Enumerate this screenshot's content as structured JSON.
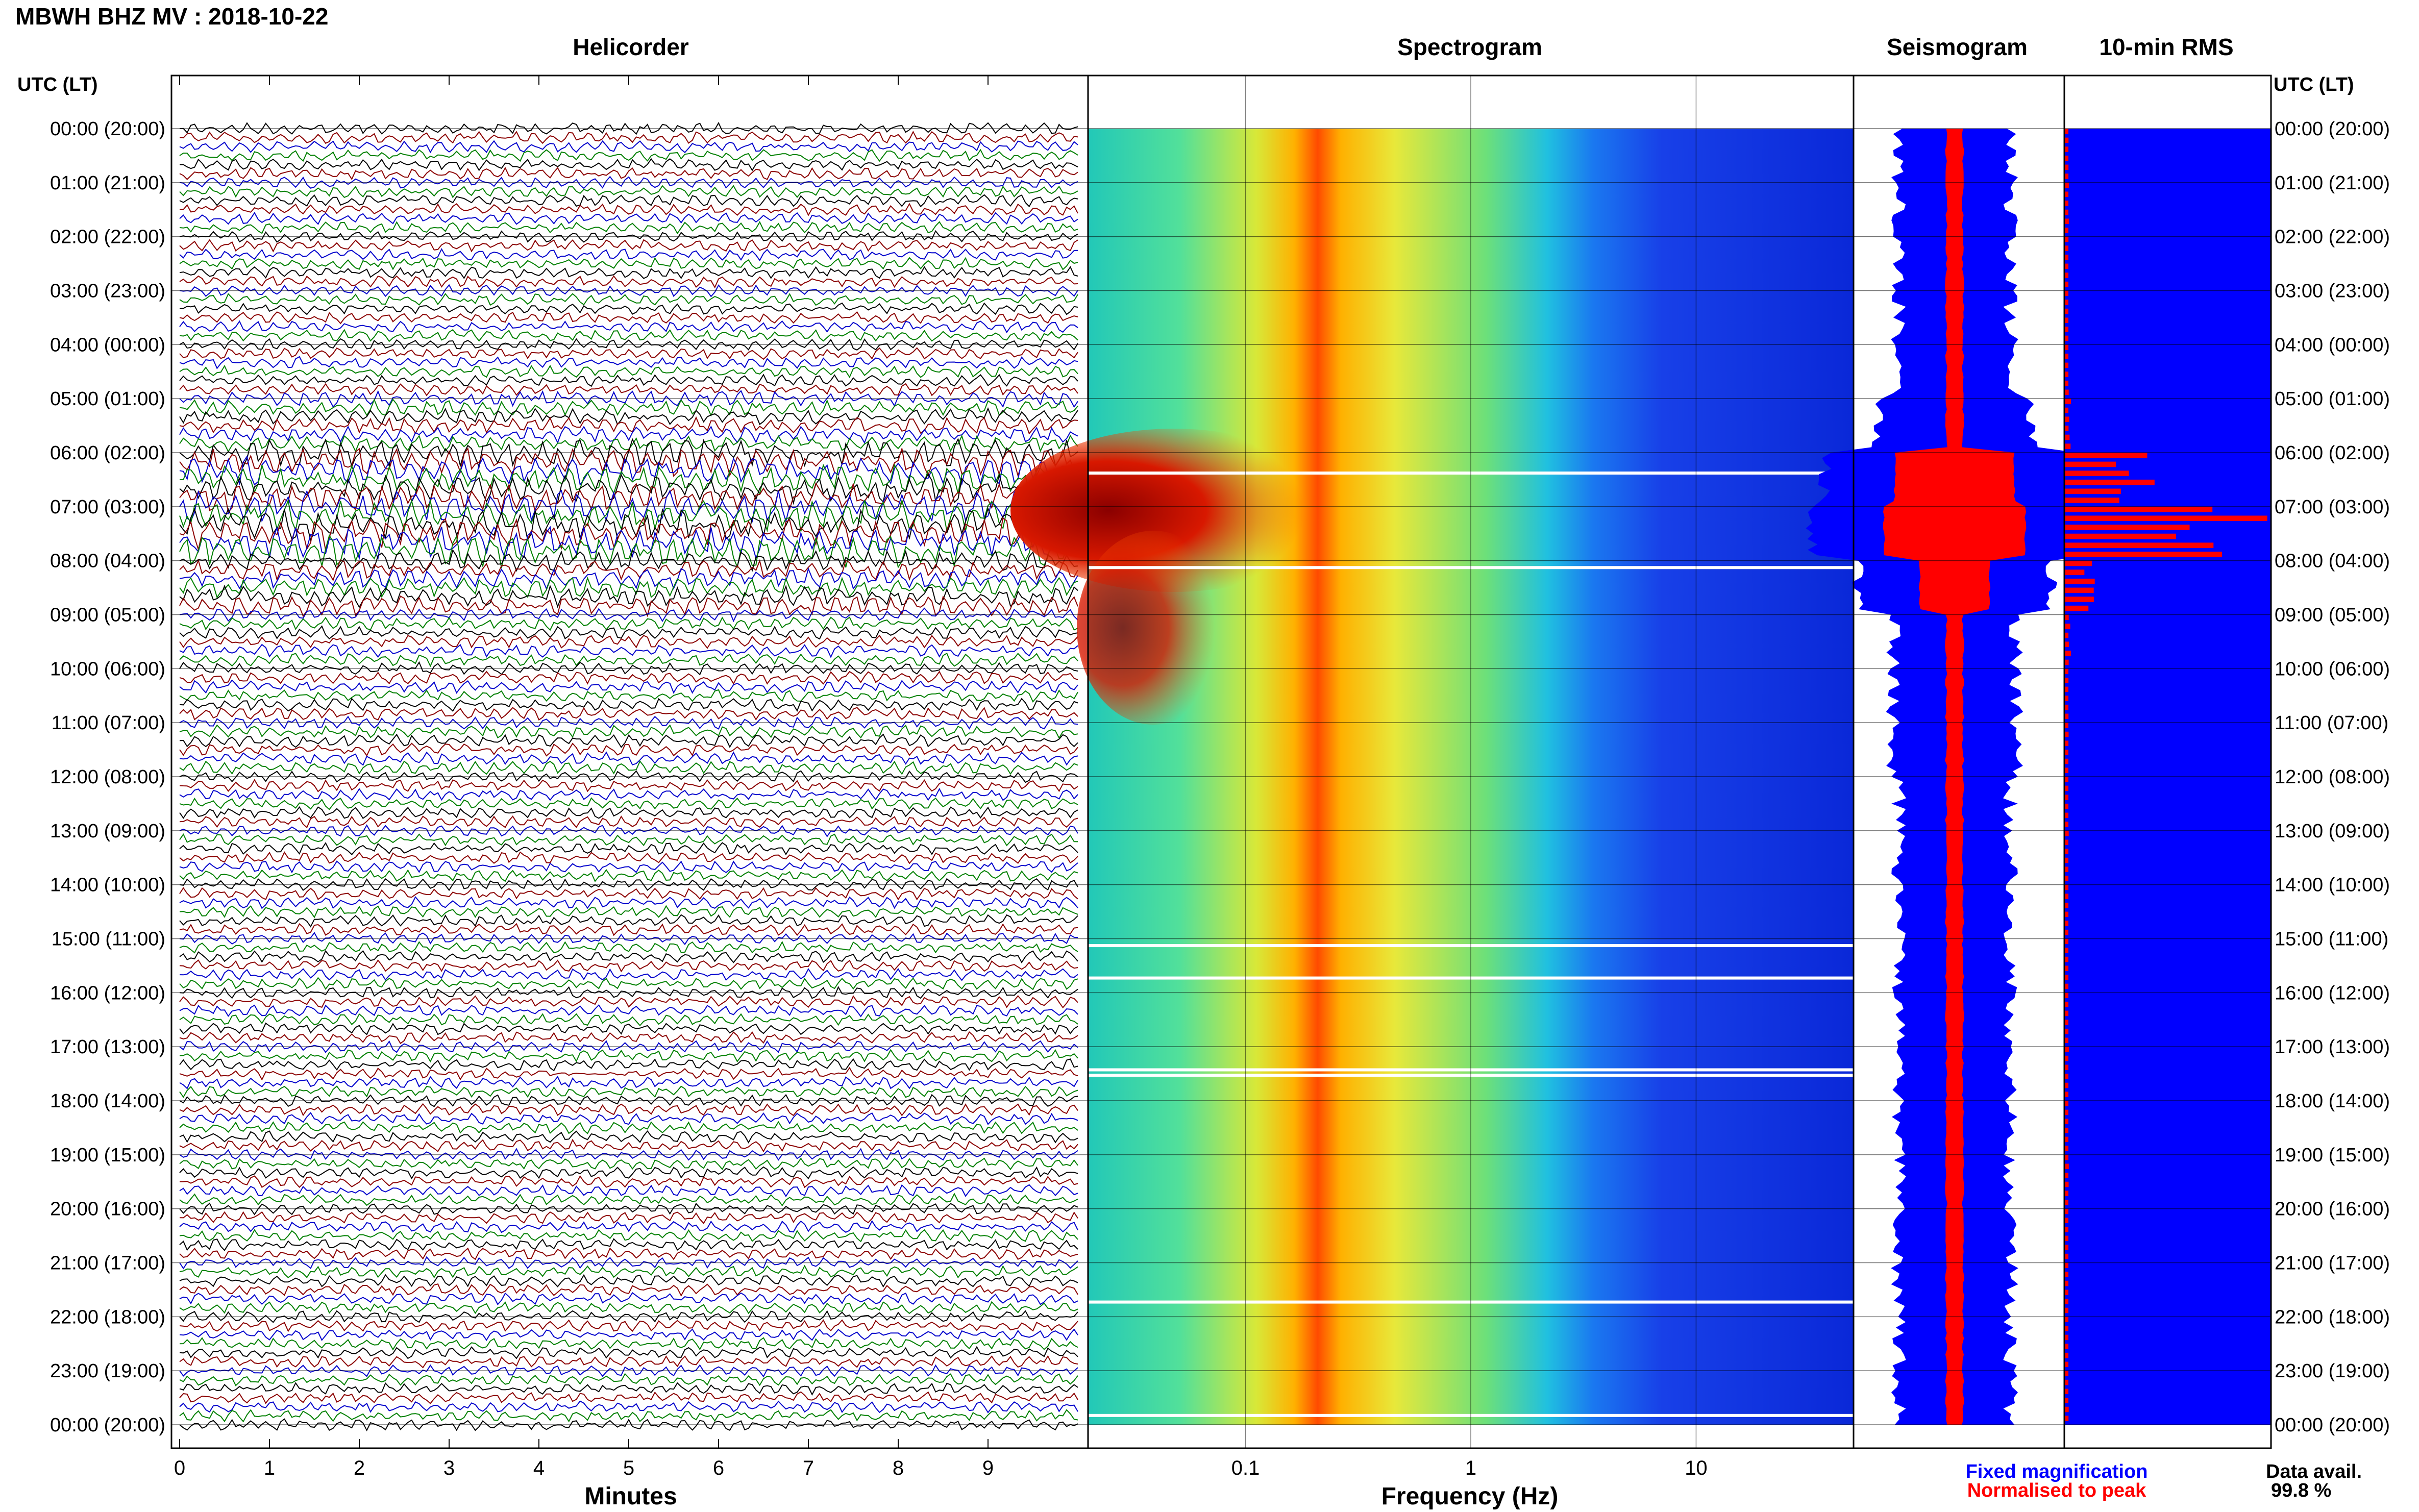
{
  "page": {
    "title": "MBWH BHZ MV : 2018-10-22",
    "utc_header": "UTC (LT)"
  },
  "panels": {
    "helicorder": "Helicorder",
    "spectrogram": "Spectrogram",
    "seismogram": "Seismogram",
    "rms": "10-min RMS"
  },
  "axes": {
    "minutes_label": "Minutes",
    "frequency_label": "Frequency (Hz)",
    "minute_ticks": [
      "0",
      "1",
      "2",
      "3",
      "4",
      "5",
      "6",
      "7",
      "8",
      "9"
    ],
    "frequency_ticks": [
      "0.1",
      "1",
      "10"
    ]
  },
  "time_labels": [
    "00:00 (20:00)",
    "01:00 (21:00)",
    "02:00 (22:00)",
    "03:00 (23:00)",
    "04:00 (00:00)",
    "05:00 (01:00)",
    "06:00 (02:00)",
    "07:00 (03:00)",
    "08:00 (04:00)",
    "09:00 (05:00)",
    "10:00 (06:00)",
    "11:00 (07:00)",
    "12:00 (08:00)",
    "13:00 (09:00)",
    "14:00 (10:00)",
    "15:00 (11:00)",
    "16:00 (12:00)",
    "17:00 (13:00)",
    "18:00 (14:00)",
    "19:00 (15:00)",
    "20:00 (16:00)",
    "21:00 (17:00)",
    "22:00 (18:00)",
    "23:00 (19:00)",
    "00:00 (20:00)"
  ],
  "legend": {
    "fixed": "Fixed magnification",
    "normalised": "Normalised to peak",
    "avail_label": "Data avail.",
    "avail_value": "99.8 %"
  },
  "colors": {
    "fixed": "#0000ff",
    "normalised": "#ff0000",
    "trace_cycle": [
      "#000000",
      "#8b0000",
      "#0000cc",
      "#008000"
    ]
  },
  "chart_data": {
    "type": "heatmap",
    "time_range_utc_hours": [
      0,
      24
    ],
    "helicorder": {
      "x_unit": "minutes",
      "xlim": [
        0,
        10
      ],
      "rows_per_hour": 6,
      "row_amplitude_by_hour": [
        1.0,
        1.0,
        1.0,
        1.0,
        1.0,
        1.4,
        2.5,
        2.8,
        1.8,
        1.1,
        1.1,
        1.1,
        1.0,
        1.0,
        1.0,
        1.0,
        1.0,
        1.0,
        1.0,
        1.0,
        1.0,
        1.0,
        1.0,
        1.0
      ]
    },
    "spectrogram": {
      "x_unit": "Hz",
      "xscale": "log",
      "xlim": [
        0.02,
        50
      ],
      "dominant_band_hz": 0.25,
      "strong_lowfreq_energy_utc_hours": [
        6,
        11
      ],
      "data_gap_rows_utc_hours": [
        6.35,
        8.1,
        15.1,
        15.7,
        17.4,
        17.5,
        21.7,
        23.8
      ]
    },
    "rms_10min": {
      "peak_utc_hour": 6.9,
      "relative_values_by_hour": [
        0.02,
        0.02,
        0.02,
        0.02,
        0.02,
        0.03,
        0.4,
        0.9,
        0.15,
        0.03,
        0.02,
        0.02,
        0.02,
        0.02,
        0.02,
        0.02,
        0.02,
        0.02,
        0.02,
        0.02,
        0.02,
        0.02,
        0.02,
        0.02
      ]
    }
  }
}
